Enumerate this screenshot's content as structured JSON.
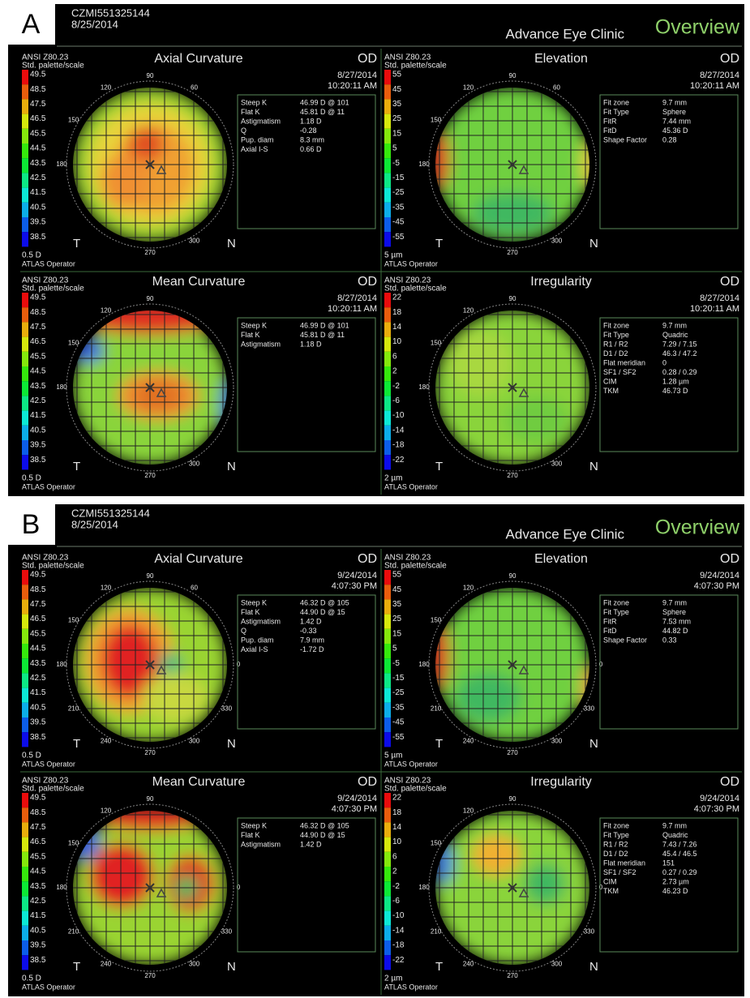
{
  "panels": [
    {
      "label": "A",
      "patient_id": "CZMI551325144",
      "exam_date": "8/25/2014",
      "clinic": "Advance Eye Clinic",
      "view": "Overview",
      "maps": [
        {
          "standard": "ANSI Z80.23",
          "palette": "Std. palette/scale",
          "title": "Axial Curvature",
          "eye": "OD",
          "date": "8/27/2014",
          "time": "10:20:11 AM",
          "scale": [
            49.5,
            48.5,
            47.5,
            46.5,
            45.5,
            44.5,
            43.5,
            42.5,
            41.5,
            40.5,
            39.5,
            38.5
          ],
          "unit": "0.5 D",
          "operator": "ATLAS Operator",
          "temporal": "T",
          "nasal": "N",
          "angles": [
            90,
            120,
            60,
            150,
            180,
            270,
            300
          ],
          "info": [
            [
              "Steep K",
              "46.99 D @ 101"
            ],
            [
              "Flat K",
              "45.81 D @ 11"
            ],
            [
              "Astigmatism",
              "1.18 D"
            ],
            [
              "Q",
              "-0.28"
            ],
            [
              "Pup. diam",
              "8.3 mm"
            ],
            [
              "Axial I-S",
              "0.66 D"
            ]
          ]
        },
        {
          "standard": "ANSI Z80.23",
          "palette": "Std. palette/scale",
          "title": "Elevation",
          "eye": "OD",
          "date": "8/27/2014",
          "time": "10:20:11 AM",
          "scale": [
            55,
            45,
            35,
            25,
            15,
            5,
            -5,
            -15,
            -25,
            -35,
            -45,
            -55
          ],
          "unit": "5 µm",
          "operator": "ATLAS Operator",
          "temporal": "T",
          "nasal": "N",
          "angles": [
            90,
            120,
            60,
            150,
            180,
            270,
            300
          ],
          "info": [
            [
              "Fit zone",
              "9.7 mm"
            ],
            [
              "Fit Type",
              "Sphere"
            ],
            [
              "FitR",
              "7.44 mm"
            ],
            [
              "FitD",
              "45.36 D"
            ],
            [
              "Shape Factor",
              "0.28"
            ]
          ]
        },
        {
          "standard": "ANSI Z80.23",
          "palette": "Std. palette/scale",
          "title": "Mean Curvature",
          "eye": "OD",
          "date": "8/27/2014",
          "time": "10:20:11 AM",
          "scale": [
            49.5,
            48.5,
            47.5,
            46.5,
            45.5,
            44.5,
            43.5,
            42.5,
            41.5,
            40.5,
            39.5,
            38.5
          ],
          "unit": "0.5 D",
          "operator": "ATLAS Operator",
          "temporal": "T",
          "nasal": "N",
          "angles": [
            90,
            120,
            150,
            180,
            270,
            300
          ],
          "info": [
            [
              "Steep K",
              "46.99 D @ 101"
            ],
            [
              "Flat K",
              "45.81 D @ 11"
            ],
            [
              "Astigmatism",
              "1.18 D"
            ]
          ]
        },
        {
          "standard": "ANSI Z80.23",
          "palette": "Std. palette/scale",
          "title": "Irregularity",
          "eye": "OD",
          "date": "8/27/2014",
          "time": "10:20:11 AM",
          "scale": [
            22,
            18,
            14,
            10,
            6,
            2,
            -2,
            -6,
            -10,
            -14,
            -18,
            -22
          ],
          "unit": "2 µm",
          "operator": "ATLAS Operator",
          "temporal": "T",
          "nasal": "N",
          "angles": [
            90,
            120,
            150,
            180,
            270,
            300
          ],
          "info": [
            [
              "Fit zone",
              "9.7 mm"
            ],
            [
              "Fit Type",
              "Quadric"
            ],
            [
              "R1 / R2",
              "7.29 / 7.15"
            ],
            [
              "D1 / D2",
              "46.3 / 47.2"
            ],
            [
              "Flat meridian",
              "0"
            ],
            [
              "SF1 / SF2",
              "0.28 / 0.29"
            ],
            [
              "CIM",
              "1.28 µm"
            ],
            [
              "TKM",
              "46.73 D"
            ]
          ]
        }
      ]
    },
    {
      "label": "B",
      "patient_id": "CZMI551325144",
      "exam_date": "8/25/2014",
      "clinic": "Advance Eye Clinic",
      "view": "Overview",
      "maps": [
        {
          "standard": "ANSI Z80.23",
          "palette": "Std. palette/scale",
          "title": "Axial Curvature",
          "eye": "OD",
          "date": "9/24/2014",
          "time": "4:07:30 PM",
          "scale": [
            49.5,
            48.5,
            47.5,
            46.5,
            45.5,
            44.5,
            43.5,
            42.5,
            41.5,
            40.5,
            39.5,
            38.5
          ],
          "unit": "0.5 D",
          "operator": "ATLAS Operator",
          "temporal": "T",
          "nasal": "N",
          "angles": [
            90,
            120,
            60,
            150,
            180,
            0,
            210,
            330,
            240,
            270,
            300
          ],
          "info": [
            [
              "Steep K",
              "46.32 D @ 105"
            ],
            [
              "Flat K",
              "44.90 D @ 15"
            ],
            [
              "Astigmatism",
              "1.42 D"
            ],
            [
              "Q",
              "-0.33"
            ],
            [
              "Pup. diam",
              "7.9 mm"
            ],
            [
              "Axial I-S",
              "-1.72 D"
            ]
          ]
        },
        {
          "standard": "ANSI Z80.23",
          "palette": "Std. palette/scale",
          "title": "Elevation",
          "eye": "OD",
          "date": "9/24/2014",
          "time": "4:07:30 PM",
          "scale": [
            55,
            45,
            35,
            25,
            15,
            5,
            -5,
            -15,
            -25,
            -35,
            -45,
            -55
          ],
          "unit": "5 µm",
          "operator": "ATLAS Operator",
          "temporal": "T",
          "nasal": "N",
          "angles": [
            90,
            120,
            150,
            180,
            0,
            210,
            330,
            240,
            270,
            300
          ],
          "info": [
            [
              "Fit zone",
              "9.7 mm"
            ],
            [
              "Fit Type",
              "Sphere"
            ],
            [
              "FitR",
              "7.53 mm"
            ],
            [
              "FitD",
              "44.82 D"
            ],
            [
              "Shape Factor",
              "0.33"
            ]
          ]
        },
        {
          "standard": "ANSI Z80.23",
          "palette": "Std. palette/scale",
          "title": "Mean Curvature",
          "eye": "OD",
          "date": "9/24/2014",
          "time": "4:07:30 PM",
          "scale": [
            49.5,
            48.5,
            47.5,
            46.5,
            45.5,
            44.5,
            43.5,
            42.5,
            41.5,
            40.5,
            39.5,
            38.5
          ],
          "unit": "0.5 D",
          "operator": "ATLAS Operator",
          "temporal": "T",
          "nasal": "N",
          "angles": [
            90,
            120,
            150,
            180,
            0,
            210,
            330,
            240,
            270,
            300
          ],
          "info": [
            [
              "Steep K",
              "46.32 D @ 105"
            ],
            [
              "Flat K",
              "44.90 D @ 15"
            ],
            [
              "Astigmatism",
              "1.42 D"
            ]
          ]
        },
        {
          "standard": "ANSI Z80.23",
          "palette": "Std. palette/scale",
          "title": "Irregularity",
          "eye": "OD",
          "date": "9/24/2014",
          "time": "4:07:30 PM",
          "scale": [
            22,
            18,
            14,
            10,
            6,
            2,
            -2,
            -6,
            -10,
            -14,
            -18,
            -22
          ],
          "unit": "2 µm",
          "operator": "ATLAS Operator",
          "temporal": "T",
          "nasal": "N",
          "angles": [
            90,
            120,
            150,
            180,
            0,
            210,
            330,
            240,
            270,
            300
          ],
          "info": [
            [
              "Fit zone",
              "9.7 mm"
            ],
            [
              "Fit Type",
              "Quadric"
            ],
            [
              "R1 / R2",
              "7.43 / 7.26"
            ],
            [
              "D1 / D2",
              "45.4 / 46.5"
            ],
            [
              "Flat meridian",
              "151"
            ],
            [
              "SF1 / SF2",
              "0.27 / 0.29"
            ],
            [
              "CIM",
              "2.73 µm"
            ],
            [
              "TKM",
              "46.23 D"
            ]
          ]
        }
      ]
    }
  ]
}
